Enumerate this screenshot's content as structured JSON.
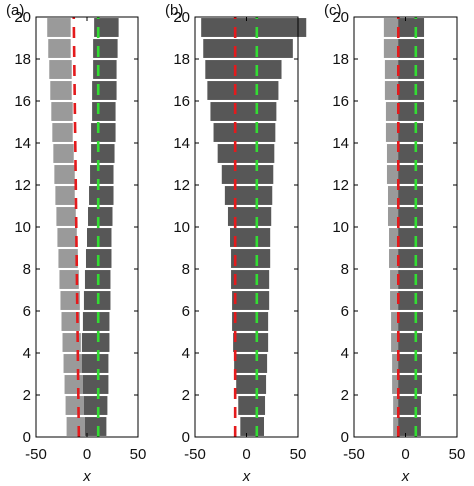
{
  "chart_data": [
    {
      "type": "bar",
      "panel_label": "(a)",
      "xlabel": "x",
      "ylabel": "",
      "xlim": [
        -50,
        50
      ],
      "ylim": [
        0,
        20
      ],
      "x_ticks": [
        "-50",
        "0",
        "50"
      ],
      "y_ticks": [
        "0",
        "2",
        "4",
        "6",
        "8",
        "10",
        "12",
        "14",
        "16",
        "18",
        "20"
      ],
      "grid": false,
      "categories": [
        0,
        1,
        2,
        3,
        4,
        5,
        6,
        7,
        8,
        9,
        10,
        11,
        12,
        13,
        14,
        15,
        16,
        17,
        18,
        19
      ],
      "series": [
        {
          "color": "#9a9a9a",
          "start": [
            -20,
            -21,
            -22,
            -23,
            -24,
            -25,
            -26,
            -27,
            -28,
            -29,
            -30,
            -31,
            -32,
            -33,
            -34,
            -35,
            -36,
            -37,
            -38,
            -39
          ],
          "end": [
            -2,
            -3,
            -4,
            -5,
            -6,
            -7,
            -7,
            -8,
            -9,
            -10,
            -11,
            -12,
            -12,
            -13,
            -14,
            -14,
            -15,
            -15,
            -16,
            -16
          ]
        },
        {
          "color": "#575757",
          "start": [
            -2,
            -3,
            -4,
            -5,
            -5,
            -4,
            -3,
            -2,
            -1,
            0,
            1,
            2,
            3,
            4,
            4,
            5,
            5,
            6,
            6,
            7
          ],
          "end": [
            19,
            20,
            21,
            21,
            22,
            22,
            23,
            23,
            24,
            24,
            25,
            26,
            26,
            27,
            28,
            28,
            29,
            29,
            30,
            31
          ]
        }
      ],
      "reference_lines": [
        {
          "color": "#e41a1c",
          "style": "dashed",
          "x": [
            -8,
            -8.5,
            -9,
            -9.5,
            -10,
            -10.5,
            -11,
            -11.5,
            -12,
            -12.5,
            -13
          ]
        },
        {
          "color": "#33dd33",
          "style": "dashed",
          "x": [
            11,
            11,
            11,
            11,
            11,
            11,
            11,
            11,
            11,
            11,
            11
          ]
        }
      ]
    },
    {
      "type": "bar",
      "panel_label": "(b)",
      "xlabel": "x",
      "ylabel": "",
      "xlim": [
        -50,
        50
      ],
      "ylim": [
        0,
        20
      ],
      "x_ticks": [
        "-50",
        "0",
        "50"
      ],
      "y_ticks": [
        "0",
        "2",
        "4",
        "6",
        "8",
        "10",
        "12",
        "14",
        "16",
        "18",
        "20"
      ],
      "grid": false,
      "categories": [
        0,
        1,
        2,
        3,
        4,
        5,
        6,
        7,
        8,
        9,
        10,
        11,
        12,
        13,
        14,
        15,
        16,
        17,
        18,
        19
      ],
      "series": [
        {
          "color": "#575757",
          "start": [
            -6,
            -8,
            -10,
            -12,
            -13,
            -14,
            -14,
            -15,
            -15,
            -16,
            -18,
            -21,
            -24,
            -28,
            -32,
            -35,
            -38,
            -40,
            -42,
            -44
          ],
          "end": [
            17,
            18,
            19,
            20,
            21,
            21,
            22,
            22,
            23,
            23,
            24,
            25,
            26,
            27,
            28,
            29,
            31,
            34,
            45,
            58
          ]
        }
      ],
      "reference_lines": [
        {
          "color": "#e41a1c",
          "style": "dashed",
          "x": [
            -11,
            -11,
            -11,
            -11,
            -11,
            -11,
            -11,
            -11,
            -11,
            -11,
            -11
          ]
        },
        {
          "color": "#33dd33",
          "style": "dashed",
          "x": [
            10,
            10,
            10,
            10,
            10,
            10,
            10,
            10,
            10,
            10,
            10
          ]
        }
      ]
    },
    {
      "type": "bar",
      "panel_label": "(c)",
      "xlabel": "x",
      "ylabel": "",
      "xlim": [
        -50,
        50
      ],
      "ylim": [
        0,
        20
      ],
      "x_ticks": [
        "-50",
        "0",
        "50"
      ],
      "y_ticks": [
        "0",
        "2",
        "4",
        "6",
        "8",
        "10",
        "12",
        "14",
        "16",
        "18",
        "20"
      ],
      "grid": false,
      "categories": [
        0,
        1,
        2,
        3,
        4,
        5,
        6,
        7,
        8,
        9,
        10,
        11,
        12,
        13,
        14,
        15,
        16,
        17,
        18,
        19
      ],
      "series": [
        {
          "color": "#9a9a9a",
          "start": [
            -12,
            -12,
            -13,
            -13,
            -14,
            -14,
            -15,
            -15,
            -16,
            -16,
            -17,
            -17,
            -18,
            -18,
            -19,
            -19,
            -20,
            -20,
            -21,
            -21
          ],
          "end": [
            -5,
            -5,
            -5,
            -5,
            -5,
            -5,
            -5,
            -5,
            -5,
            -5,
            -5,
            -5,
            -5,
            -5,
            -5,
            -5,
            -5,
            -5,
            -5,
            -5
          ]
        },
        {
          "color": "#575757",
          "start": [
            -7,
            -7,
            -7,
            -7,
            -7,
            -7,
            -7,
            -7,
            -7,
            -7,
            -7,
            -7,
            -7,
            -7,
            -7,
            -7,
            -7,
            -7,
            -7,
            -7
          ],
          "end": [
            15,
            15,
            16,
            16,
            16,
            17,
            17,
            17,
            17,
            17,
            17,
            17,
            17,
            17,
            17,
            18,
            18,
            18,
            18,
            18
          ]
        }
      ],
      "reference_lines": [
        {
          "color": "#e41a1c",
          "style": "dashed",
          "x": [
            -7,
            -7,
            -7,
            -7,
            -7,
            -7,
            -7,
            -7,
            -7,
            -7,
            -7
          ]
        },
        {
          "color": "#33dd33",
          "style": "dashed",
          "x": [
            10,
            10,
            10,
            10,
            10,
            10,
            10,
            10,
            10,
            10,
            10
          ]
        }
      ]
    }
  ]
}
